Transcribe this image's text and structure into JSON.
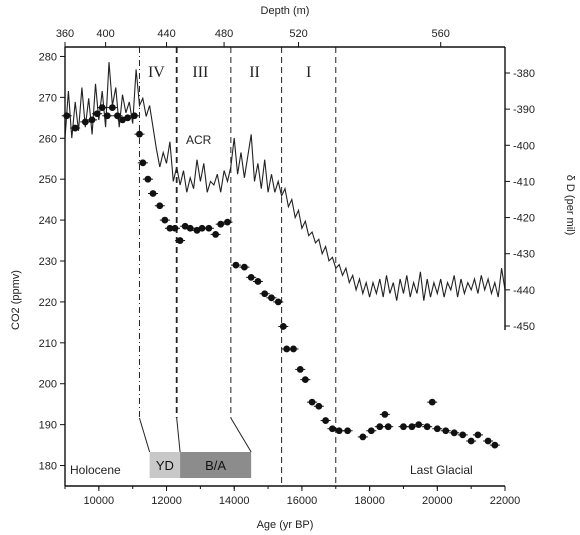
{
  "chart_data": {
    "type": "scatter",
    "title": "",
    "x_bottom": {
      "label": "Age (yr BP)",
      "range": [
        9000,
        22000
      ],
      "ticks": [
        10000,
        12000,
        14000,
        16000,
        18000,
        20000,
        22000
      ],
      "tick_labels": [
        "10000",
        "12000",
        "14000",
        "16000",
        "18000",
        "20000",
        "22000"
      ]
    },
    "x_top": {
      "label": "Depth (m)",
      "ticks": [
        {
          "age": 9000,
          "label": "360"
        },
        {
          "age": 10200,
          "label": "400"
        },
        {
          "age": 12000,
          "label": "440"
        },
        {
          "age": 13700,
          "label": "480"
        },
        {
          "age": 15900,
          "label": "520"
        },
        {
          "age": 20100,
          "label": "560"
        }
      ]
    },
    "y_left": {
      "label": "CO2 (ppmv)",
      "range": [
        175,
        285
      ],
      "ticks": [
        180,
        190,
        200,
        210,
        220,
        230,
        240,
        250,
        260,
        270,
        280
      ],
      "tick_labels": [
        "180",
        "190",
        "200",
        "210",
        "220",
        "230",
        "240",
        "250",
        "260",
        "270",
        "280"
      ]
    },
    "y_right": {
      "label": "δ D (per mil)",
      "range": [
        -452,
        -373
      ],
      "ticks": [
        -380,
        -390,
        -400,
        -410,
        -420,
        -430,
        -440,
        -450
      ],
      "tick_labels": [
        "-380",
        "-390",
        "-400",
        "-410",
        "-420",
        "-430",
        "-440",
        "-450"
      ]
    },
    "zones": [
      {
        "label": "IV",
        "at": 11700
      },
      {
        "label": "III",
        "at": 13000
      },
      {
        "label": "II",
        "at": 14600
      },
      {
        "label": "I",
        "at": 16200
      }
    ],
    "boundaries": [
      11200,
      12300,
      13900,
      15400,
      17000
    ],
    "annotations": {
      "acr": "ACR",
      "holocene": "Holocene",
      "last_glacial": "Last Glacial"
    },
    "bands": [
      {
        "label": "YD",
        "from": 11500,
        "to": 12400,
        "color": "#c8c8c8"
      },
      {
        "label": "B/A",
        "from": 12400,
        "to": 14500,
        "color": "#8c8c8c"
      }
    ],
    "series": [
      {
        "axis": "left",
        "style": "marker",
        "points": [
          [
            9050,
            265.5
          ],
          [
            9300,
            262.5
          ],
          [
            9600,
            264
          ],
          [
            9800,
            264.5
          ],
          [
            9950,
            266
          ],
          [
            10100,
            267.5
          ],
          [
            10250,
            265.5
          ],
          [
            10400,
            267.5
          ],
          [
            10550,
            265.5
          ],
          [
            10700,
            264.5
          ],
          [
            10850,
            265
          ],
          [
            11050,
            265.5
          ],
          [
            11200,
            261
          ],
          [
            11300,
            254
          ],
          [
            11450,
            250
          ],
          [
            11600,
            246.5
          ],
          [
            11800,
            243.5
          ],
          [
            11950,
            240
          ],
          [
            12100,
            238
          ],
          [
            12250,
            238
          ],
          [
            12400,
            235
          ],
          [
            12550,
            238.5
          ],
          [
            12700,
            238
          ],
          [
            12900,
            237.5
          ],
          [
            13050,
            238
          ],
          [
            13250,
            238
          ],
          [
            13450,
            236.5
          ],
          [
            13600,
            239
          ],
          [
            13800,
            239.5
          ],
          [
            14050,
            229
          ],
          [
            14300,
            228.5
          ],
          [
            14500,
            226
          ],
          [
            14700,
            225
          ],
          [
            14900,
            222
          ],
          [
            15100,
            221
          ],
          [
            15300,
            220
          ],
          [
            15450,
            214
          ],
          [
            15550,
            208.5
          ],
          [
            15750,
            208.5
          ],
          [
            15950,
            203.5
          ],
          [
            16100,
            201
          ],
          [
            16300,
            195.5
          ],
          [
            16500,
            194.5
          ],
          [
            16700,
            191
          ],
          [
            16900,
            189
          ],
          [
            17100,
            188.5
          ],
          [
            17350,
            188.5
          ],
          [
            17800,
            187
          ],
          [
            18050,
            188.5
          ],
          [
            18300,
            189.5
          ],
          [
            18450,
            192.5
          ],
          [
            18550,
            189.5
          ],
          [
            19000,
            189.5
          ],
          [
            19250,
            189.5
          ],
          [
            19450,
            190
          ],
          [
            19700,
            189.5
          ],
          [
            19850,
            195.5
          ],
          [
            20000,
            189
          ],
          [
            20250,
            188.5
          ],
          [
            20500,
            188
          ],
          [
            20750,
            187.5
          ],
          [
            21000,
            186
          ],
          [
            21200,
            187.5
          ],
          [
            21500,
            186
          ],
          [
            21700,
            185
          ]
        ]
      },
      {
        "axis": "right",
        "style": "line",
        "points": [
          [
            9000,
            -398
          ],
          [
            9100,
            -385
          ],
          [
            9200,
            -398
          ],
          [
            9300,
            -388
          ],
          [
            9400,
            -396
          ],
          [
            9500,
            -384
          ],
          [
            9600,
            -395
          ],
          [
            9700,
            -387
          ],
          [
            9800,
            -397
          ],
          [
            9900,
            -383
          ],
          [
            10000,
            -393
          ],
          [
            10100,
            -385
          ],
          [
            10200,
            -395
          ],
          [
            10300,
            -377
          ],
          [
            10400,
            -389
          ],
          [
            10500,
            -384
          ],
          [
            10600,
            -395
          ],
          [
            10700,
            -386
          ],
          [
            10800,
            -391
          ],
          [
            10900,
            -388
          ],
          [
            11000,
            -394
          ],
          [
            11100,
            -379
          ],
          [
            11200,
            -389
          ],
          [
            11300,
            -387
          ],
          [
            11400,
            -392
          ],
          [
            11500,
            -389
          ],
          [
            11600,
            -395
          ],
          [
            11700,
            -401
          ],
          [
            11800,
            -406
          ],
          [
            11900,
            -402
          ],
          [
            12000,
            -405
          ],
          [
            12100,
            -399
          ],
          [
            12200,
            -410
          ],
          [
            12300,
            -406
          ],
          [
            12400,
            -411
          ],
          [
            12500,
            -407
          ],
          [
            12600,
            -413
          ],
          [
            12700,
            -409
          ],
          [
            12800,
            -412
          ],
          [
            12900,
            -404
          ],
          [
            13000,
            -410
          ],
          [
            13100,
            -405
          ],
          [
            13200,
            -413
          ],
          [
            13300,
            -410
          ],
          [
            13400,
            -411
          ],
          [
            13500,
            -408
          ],
          [
            13600,
            -413
          ],
          [
            13700,
            -407
          ],
          [
            13800,
            -410
          ],
          [
            13900,
            -406
          ],
          [
            14000,
            -398
          ],
          [
            14100,
            -408
          ],
          [
            14200,
            -402
          ],
          [
            14300,
            -409
          ],
          [
            14400,
            -403
          ],
          [
            14500,
            -397
          ],
          [
            14600,
            -410
          ],
          [
            14700,
            -405
          ],
          [
            14800,
            -412
          ],
          [
            14900,
            -404
          ],
          [
            15000,
            -413
          ],
          [
            15100,
            -408
          ],
          [
            15200,
            -413
          ],
          [
            15300,
            -410
          ],
          [
            15400,
            -414
          ],
          [
            15500,
            -412
          ],
          [
            15600,
            -417
          ],
          [
            15700,
            -415
          ],
          [
            15800,
            -420
          ],
          [
            15900,
            -418
          ],
          [
            16000,
            -423
          ],
          [
            16100,
            -421
          ],
          [
            16200,
            -425
          ],
          [
            16300,
            -424
          ],
          [
            16400,
            -427
          ],
          [
            16500,
            -426
          ],
          [
            16600,
            -430
          ],
          [
            16700,
            -428
          ],
          [
            16800,
            -432
          ],
          [
            16900,
            -431
          ],
          [
            17000,
            -434
          ],
          [
            17100,
            -433
          ],
          [
            17200,
            -436
          ],
          [
            17300,
            -434
          ],
          [
            17400,
            -438
          ],
          [
            17500,
            -436
          ],
          [
            17600,
            -440
          ],
          [
            17700,
            -437
          ],
          [
            17800,
            -441
          ],
          [
            17900,
            -438
          ],
          [
            18000,
            -442
          ],
          [
            18100,
            -438
          ],
          [
            18200,
            -441
          ],
          [
            18300,
            -437
          ],
          [
            18400,
            -442
          ],
          [
            18500,
            -436
          ],
          [
            18600,
            -441
          ],
          [
            18700,
            -438
          ],
          [
            18800,
            -443
          ],
          [
            18900,
            -437
          ],
          [
            19000,
            -441
          ],
          [
            19100,
            -436
          ],
          [
            19200,
            -442
          ],
          [
            19300,
            -438
          ],
          [
            19400,
            -441
          ],
          [
            19500,
            -435
          ],
          [
            19600,
            -443
          ],
          [
            19700,
            -437
          ],
          [
            19800,
            -442
          ],
          [
            19900,
            -438
          ],
          [
            20000,
            -441
          ],
          [
            20100,
            -437
          ],
          [
            20200,
            -442
          ],
          [
            20300,
            -438
          ],
          [
            20400,
            -440
          ],
          [
            20500,
            -436
          ],
          [
            20600,
            -442
          ],
          [
            20700,
            -437
          ],
          [
            20800,
            -441
          ],
          [
            20900,
            -438
          ],
          [
            21000,
            -440
          ],
          [
            21100,
            -437
          ],
          [
            21200,
            -441
          ],
          [
            21300,
            -436
          ],
          [
            21400,
            -440
          ],
          [
            21500,
            -437
          ],
          [
            21600,
            -441
          ],
          [
            21700,
            -438
          ],
          [
            21800,
            -442
          ],
          [
            21900,
            -434
          ],
          [
            22000,
            -440
          ]
        ]
      }
    ]
  }
}
